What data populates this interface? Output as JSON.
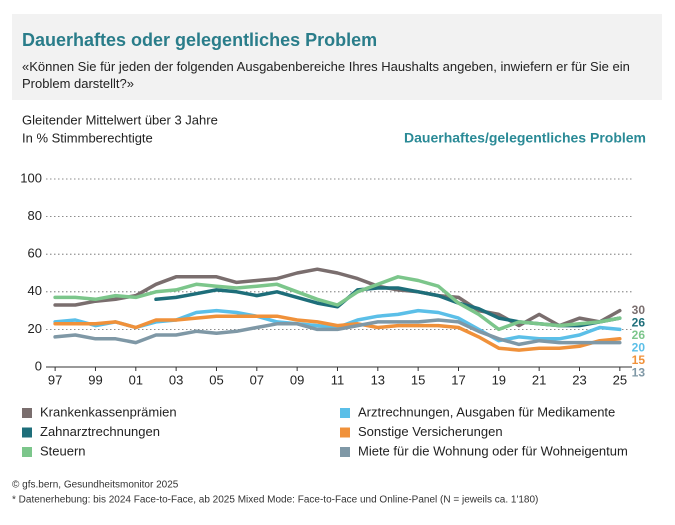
{
  "chart_data": {
    "type": "line",
    "title": "Dauerhaftes oder gelegentliches Problem",
    "subtitle": "«Können Sie für jeden der folgenden Ausgabenbereiche Ihres Haushalts angeben, inwiefern er für Sie ein Problem darstellt?»",
    "note_lines": [
      "Gleitender Mittelwert über 3 Jahre",
      "In % Stimmberechtigte"
    ],
    "y_label": "Dauerhaftes/gelegentliches Problem",
    "source": "© gfs.bern, Gesundheitsmonitor 2025",
    "footnote": "* Datenerhebung: bis 2024 Face-to-Face, ab 2025 Mixed Mode: Face-to-Face und Online-Panel (N = jeweils ca. 1'180)",
    "x": [
      1997,
      1998,
      1999,
      2000,
      2001,
      2002,
      2003,
      2004,
      2005,
      2006,
      2007,
      2008,
      2009,
      2010,
      2011,
      2012,
      2013,
      2014,
      2015,
      2016,
      2017,
      2018,
      2019,
      2020,
      2021,
      2022,
      2023,
      2024,
      2025
    ],
    "xlim": [
      1996.25,
      2026
    ],
    "xticks": [
      {
        "value": 1997,
        "label": "97"
      },
      {
        "value": 1999,
        "label": "99"
      },
      {
        "value": 2001,
        "label": "01"
      },
      {
        "value": 2003,
        "label": "03"
      },
      {
        "value": 2005,
        "label": "05"
      },
      {
        "value": 2007,
        "label": "07"
      },
      {
        "value": 2009,
        "label": "09"
      },
      {
        "value": 2011,
        "label": "11"
      },
      {
        "value": 2013,
        "label": "13"
      },
      {
        "value": 2015,
        "label": "15"
      },
      {
        "value": 2017,
        "label": "17"
      },
      {
        "value": 2019,
        "label": "19"
      },
      {
        "value": 2021,
        "label": "21"
      },
      {
        "value": 2023,
        "label": "23"
      },
      {
        "value": 2025,
        "label": "25"
      }
    ],
    "ylim": [
      0,
      100
    ],
    "yticks": [
      0,
      20,
      40,
      60,
      80,
      100
    ],
    "grid": true,
    "series": [
      {
        "name": "Krankenkassenprämien",
        "color": "#7a6e6e",
        "values": [
          33,
          33,
          35,
          36,
          38,
          44,
          48,
          48,
          48,
          45,
          46,
          47,
          50,
          52,
          50,
          47,
          43,
          41,
          40,
          38,
          37,
          30,
          28,
          22,
          28,
          22,
          26,
          24,
          30
        ]
      },
      {
        "name": "Zahnarztrechnungen",
        "color": "#1e6e7a",
        "values": [
          null,
          null,
          null,
          null,
          null,
          36,
          37,
          39,
          41,
          40,
          38,
          40,
          37,
          34,
          32,
          41,
          42,
          42,
          40,
          38,
          34,
          31,
          26,
          24,
          23,
          22,
          22,
          24,
          26
        ]
      },
      {
        "name": "Steuern",
        "color": "#7cc68b",
        "values": [
          37,
          37,
          36,
          38,
          37,
          40,
          41,
          44,
          43,
          42,
          43,
          44,
          40,
          36,
          33,
          40,
          44,
          48,
          46,
          43,
          34,
          28,
          20,
          24,
          23,
          22,
          23,
          24,
          26
        ]
      },
      {
        "name": "Arztrechnungen, Ausgaben für Medikamente",
        "color": "#5bbfe8",
        "values": [
          24,
          25,
          22,
          24,
          21,
          24,
          25,
          29,
          30,
          29,
          27,
          24,
          23,
          22,
          21,
          25,
          27,
          28,
          30,
          29,
          26,
          20,
          14,
          16,
          15,
          15,
          17,
          21,
          20
        ]
      },
      {
        "name": "Sonstige Versicherungen",
        "color": "#f0913a",
        "values": [
          23,
          23,
          23,
          24,
          21,
          25,
          25,
          26,
          27,
          27,
          27,
          27,
          25,
          24,
          22,
          23,
          21,
          22,
          22,
          22,
          21,
          16,
          10,
          9,
          10,
          10,
          11,
          14,
          15
        ]
      },
      {
        "name": "Miete für die Wohnung oder für Wohneigentum",
        "color": "#7f98a6",
        "values": [
          16,
          17,
          15,
          15,
          13,
          17,
          17,
          19,
          18,
          19,
          21,
          23,
          23,
          20,
          20,
          22,
          24,
          24,
          24,
          25,
          24,
          19,
          15,
          12,
          14,
          13,
          13,
          13,
          13
        ]
      }
    ]
  }
}
